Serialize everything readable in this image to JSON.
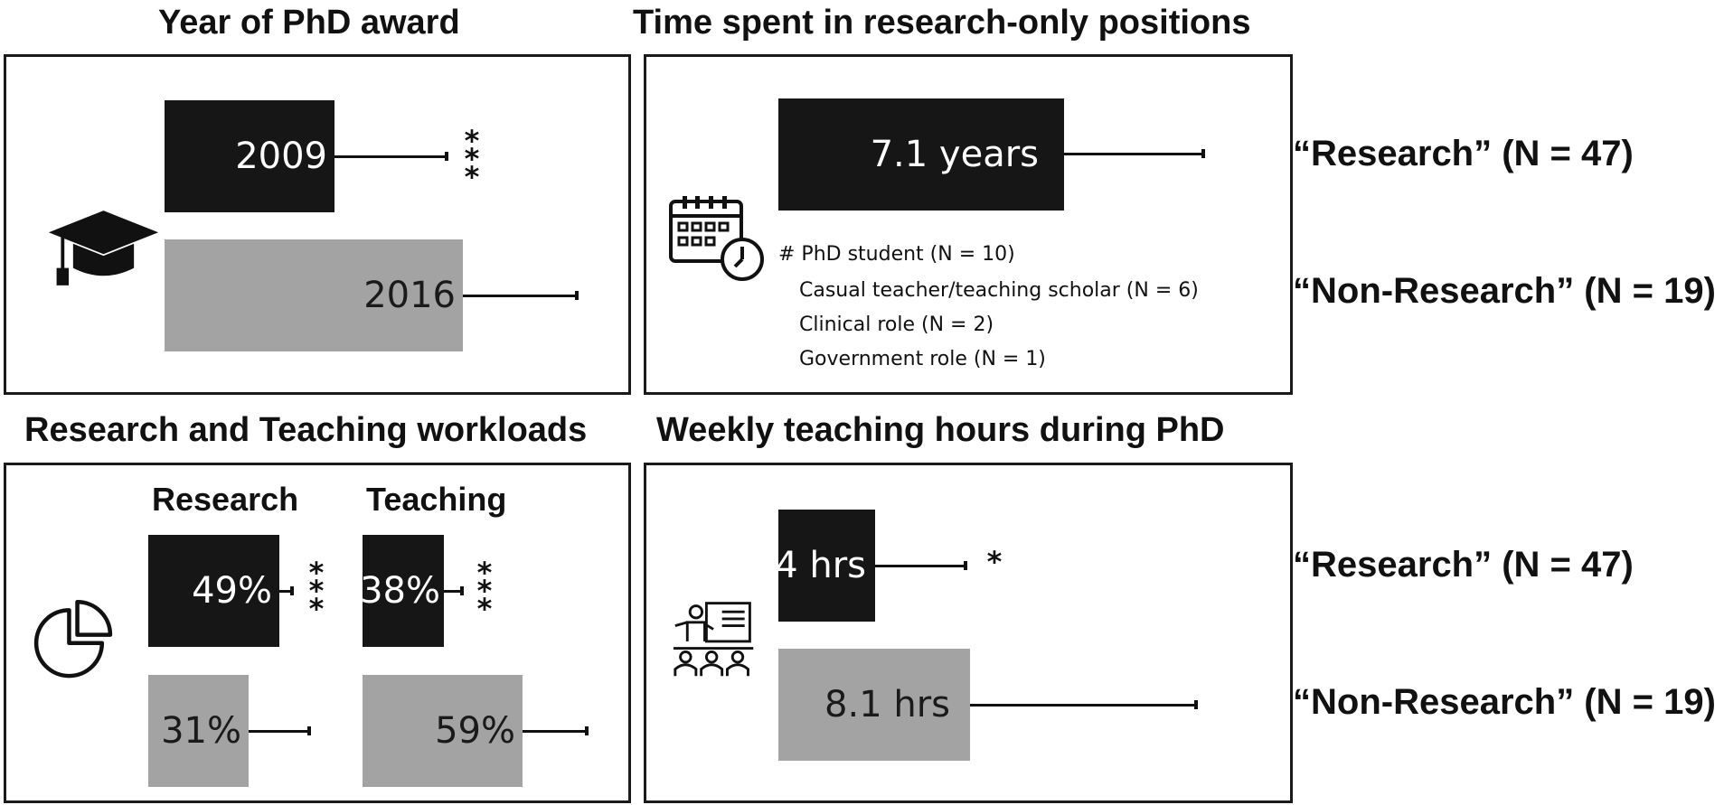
{
  "chart_data": [
    {
      "type": "bar",
      "title": "Year of PhD award",
      "categories": [
        "“Research” (N = 47)",
        "“Non-Research” (N = 19)"
      ],
      "values": [
        2009,
        2016
      ],
      "value_labels": [
        "2009",
        "2016"
      ],
      "error_upper": [
        2014,
        2019
      ],
      "significance": "***",
      "orientation": "horizontal",
      "colors": [
        "#161616",
        "#a3a3a3"
      ]
    },
    {
      "type": "bar",
      "title": "Time spent in research-only positions",
      "categories": [
        "“Research” (N = 47)"
      ],
      "values": [
        7.1
      ],
      "value_labels": [
        "7.1 years"
      ],
      "error_upper": [
        13.0
      ],
      "notes": [
        "# PhD student (N = 10)",
        "Casual teacher/teaching scholar (N = 6)",
        "Clinical role (N = 2)",
        "Government role (N = 1)"
      ],
      "orientation": "horizontal"
    },
    {
      "type": "bar",
      "title": "Research and Teaching workloads",
      "groups": [
        "Research",
        "Teaching"
      ],
      "series": [
        {
          "values": [
            49,
            38
          ],
          "value_labels": [
            "49%",
            "38%"
          ],
          "error_upper": [
            55,
            45
          ],
          "significance": [
            "***",
            "***"
          ]
        },
        {
          "values": [
            31,
            59
          ],
          "value_labels": [
            "31%",
            "59%"
          ],
          "error_upper": [
            46,
            80
          ]
        }
      ],
      "orientation": "horizontal"
    },
    {
      "type": "bar",
      "title": "Weekly teaching hours during PhD",
      "categories": [
        "“Research” (N = 47)",
        "“Non-Research” (N = 19)"
      ],
      "values": [
        4,
        8.1
      ],
      "value_labels": [
        "4 hrs",
        "8.1 hrs"
      ],
      "error_upper": [
        7.8,
        17.8
      ],
      "significance": "*",
      "orientation": "horizontal"
    }
  ],
  "legend": {
    "research": "“Research” (N = 47)",
    "nonresearch": "“Non-Research” (N = 19)"
  },
  "icons": [
    "graduation-cap-icon",
    "calendar-clock-icon",
    "pie-chart-icon",
    "teacher-classroom-icon"
  ]
}
